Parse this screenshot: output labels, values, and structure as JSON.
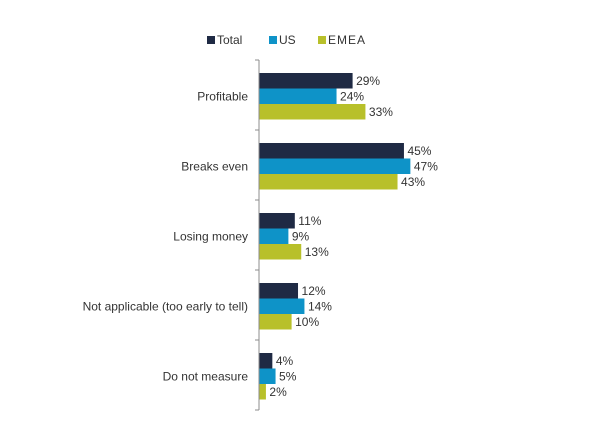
{
  "chart_data": {
    "type": "bar",
    "orientation": "horizontal",
    "title": "",
    "xlabel": "",
    "ylabel": "",
    "xlim": [
      0,
      50
    ],
    "grid": false,
    "legend_position": "top-center",
    "categories": [
      "Profitable",
      "Breaks even",
      "Losing money",
      "Not applicable (too early to tell)",
      "Do not measure"
    ],
    "series": [
      {
        "name": "Total",
        "color": "#1f2a44",
        "values": [
          29,
          45,
          11,
          12,
          4
        ],
        "labels": [
          "29%",
          "45%",
          "11%",
          "12%",
          "4%"
        ]
      },
      {
        "name": "US",
        "color": "#0e93c8",
        "values": [
          24,
          47,
          9,
          14,
          5
        ],
        "labels": [
          "24%",
          "47%",
          "9%",
          "14%",
          "5%"
        ]
      },
      {
        "name": "EMEA",
        "color": "#b8c02a",
        "values": [
          33,
          43,
          13,
          10,
          2
        ],
        "labels": [
          "33%",
          "43%",
          "13%",
          "10%",
          "2%"
        ]
      }
    ]
  }
}
